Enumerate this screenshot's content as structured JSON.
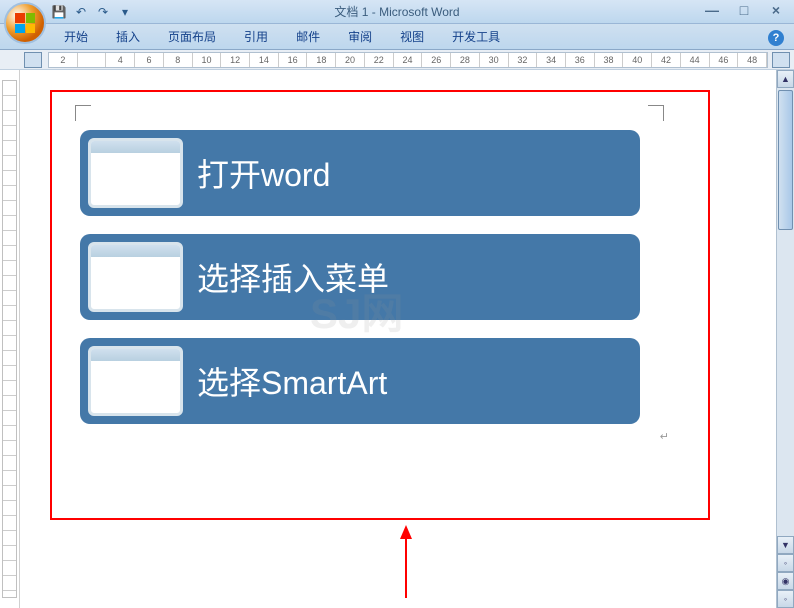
{
  "window": {
    "title": "文档 1 - Microsoft Word",
    "minimize": "—",
    "maximize": "□",
    "close": "×"
  },
  "qat": {
    "save": "💾",
    "undo": "↶",
    "redo": "↷",
    "dropdown": "▾"
  },
  "tabs": {
    "items": [
      "开始",
      "插入",
      "页面布局",
      "引用",
      "邮件",
      "审阅",
      "视图",
      "开发工具"
    ]
  },
  "help": "?",
  "ruler": {
    "marks": [
      "2",
      "",
      "4",
      "6",
      "8",
      "10",
      "12",
      "14",
      "16",
      "18",
      "20",
      "22",
      "24",
      "26",
      "28",
      "30",
      "32",
      "34",
      "36",
      "38",
      "40",
      "42",
      "44",
      "46",
      "48"
    ]
  },
  "scrollbar": {
    "up": "▲",
    "down": "▼",
    "prev": "◦",
    "next": "◦"
  },
  "smartart": {
    "items": [
      {
        "label": "打开word"
      },
      {
        "label": "选择插入菜单"
      },
      {
        "label": "选择SmartArt"
      }
    ],
    "bg_color": "#4478a8",
    "text_color": "#ffffff",
    "border_radius": 10
  },
  "annotation": {
    "box_color": "#ff0000",
    "arrow_color": "#ff0000"
  },
  "watermark": "SJ网"
}
